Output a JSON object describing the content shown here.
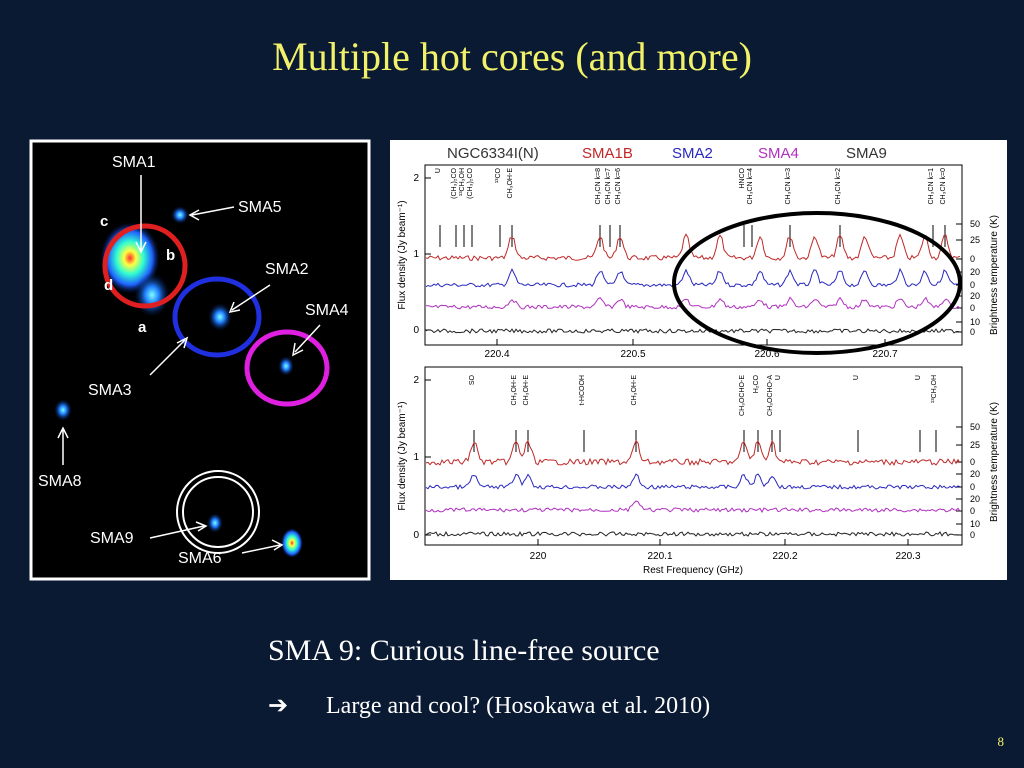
{
  "title": "Multiple hot cores (and more)",
  "map": {
    "labels": [
      "SMA1",
      "SMA5",
      "SMA2",
      "SMA4",
      "SMA3",
      "SMA8",
      "SMA9",
      "SMA6",
      "c",
      "b",
      "d",
      "a"
    ]
  },
  "spectra": {
    "sources": [
      "NGC6334I(N)",
      "SMA1B",
      "SMA2",
      "SMA4",
      "SMA9"
    ],
    "y_label": "Flux density (Jy beam⁻¹)",
    "y2_label": "Brightness temperature (K)",
    "x_label": "Rest Frequency (GHz)",
    "top_xticks": [
      "220.4",
      "220.5",
      "220.6",
      "220.7"
    ],
    "bottom_xticks": [
      "220",
      "220.1",
      "220.2",
      "220.3"
    ],
    "yticks": [
      "0",
      "1",
      "2"
    ],
    "temp_ticks": [
      "50",
      "25",
      "0",
      "20",
      "0",
      "20",
      "0",
      "10",
      "0"
    ],
    "top_lines": [
      "U",
      "(CH₃)₂CO",
      "¹³CH₃OH",
      "(CH₃)₂CO",
      "¹³CO",
      "CH₃OH-E",
      "CH₃CN k=8",
      "CH₃CN k=7",
      "CH₃CN k=6",
      "HNCO",
      "CH₃CN k=4",
      "CH₃CN k=3",
      "CH₃CN k=2",
      "CH₃CN k=1",
      "CH₃CN k=0"
    ],
    "bottom_lines": [
      "SO",
      "CH₃OH-E",
      "CH₃OH-E",
      "t-HCOOH",
      "CH₃OH-E",
      "CH₃OCHO-E",
      "H₂CO",
      "CH₃OCHO-A",
      "U",
      "U",
      "U",
      "¹³CH₃OH"
    ]
  },
  "body": {
    "heading": "SMA 9: Curious line-free source",
    "bullet": "Large and cool? (Hosokawa et al. 2010)"
  },
  "page_number": "8"
}
